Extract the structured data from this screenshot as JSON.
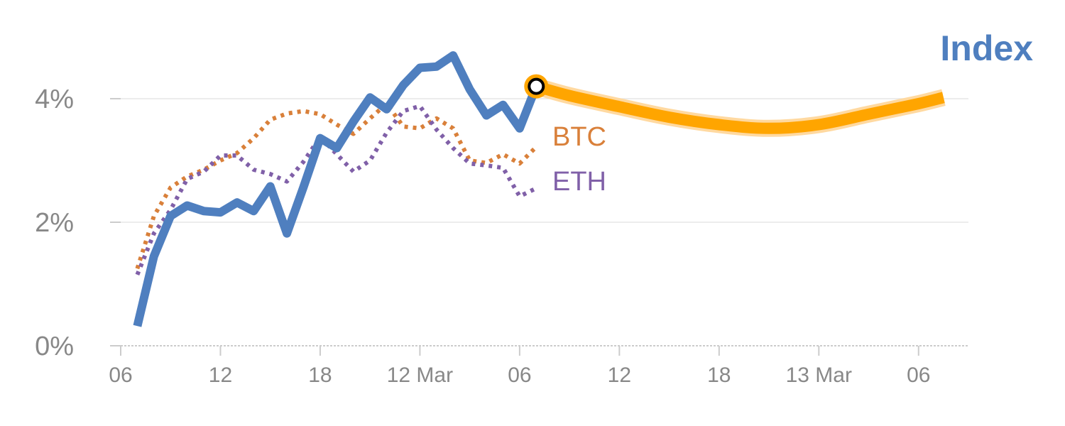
{
  "chart_data": {
    "type": "line",
    "title": "Index",
    "colors": {
      "index": "#4f7fbf",
      "btc": "#d9803a",
      "eth": "#8060a8",
      "forecast": "#ffa500",
      "forecast_glow": "#ffd9a0",
      "grid": "#e6e6e6",
      "axis": "#cccccc",
      "tick_text": "#888888"
    },
    "y_ticks": [
      {
        "value": 0,
        "label": "0%"
      },
      {
        "value": 2,
        "label": "2%"
      },
      {
        "value": 4,
        "label": "4%"
      }
    ],
    "ylim": [
      0,
      5.0
    ],
    "x_ticks": [
      {
        "x": 0,
        "label": "06"
      },
      {
        "x": 6,
        "label": "12"
      },
      {
        "x": 12,
        "label": "18"
      },
      {
        "x": 18,
        "label": "12 Mar"
      },
      {
        "x": 24,
        "label": "06"
      },
      {
        "x": 30,
        "label": "12"
      },
      {
        "x": 36,
        "label": "18"
      },
      {
        "x": 42,
        "label": "13 Mar"
      },
      {
        "x": 48,
        "label": "06"
      }
    ],
    "xlim": [
      0,
      51
    ],
    "series": [
      {
        "name": "Index",
        "key": "index",
        "style": "solid",
        "x": [
          1,
          2,
          3,
          4,
          5,
          6,
          7,
          8,
          9,
          10,
          11,
          12,
          13,
          14,
          15,
          16,
          17,
          18,
          19,
          20,
          21,
          22,
          23,
          24,
          25
        ],
        "y": [
          0.32,
          1.45,
          2.1,
          2.27,
          2.18,
          2.16,
          2.32,
          2.18,
          2.58,
          1.82,
          2.57,
          3.36,
          3.2,
          3.63,
          4.02,
          3.83,
          4.22,
          4.5,
          4.52,
          4.7,
          4.15,
          3.73,
          3.9,
          3.52,
          4.2
        ]
      },
      {
        "name": "BTC",
        "key": "btc",
        "style": "dotted",
        "x": [
          1,
          2,
          3,
          4,
          5,
          6,
          7,
          8,
          9,
          10,
          11,
          12,
          13,
          14,
          15,
          16,
          17,
          18,
          19,
          20,
          21,
          22,
          23,
          24,
          25
        ],
        "y": [
          1.25,
          2.1,
          2.56,
          2.74,
          2.85,
          3.0,
          3.12,
          3.36,
          3.66,
          3.76,
          3.8,
          3.75,
          3.58,
          3.43,
          3.68,
          3.92,
          3.55,
          3.52,
          3.68,
          3.52,
          3.0,
          2.96,
          3.1,
          2.95,
          3.22
        ]
      },
      {
        "name": "ETH",
        "key": "eth",
        "style": "dotted",
        "x": [
          1,
          2,
          3,
          4,
          5,
          6,
          7,
          8,
          9,
          10,
          11,
          12,
          13,
          14,
          15,
          16,
          17,
          18,
          19,
          20,
          21,
          22,
          23,
          24,
          25
        ],
        "y": [
          1.15,
          1.82,
          2.2,
          2.7,
          2.82,
          3.08,
          3.08,
          2.85,
          2.78,
          2.66,
          2.98,
          3.38,
          3.1,
          2.82,
          3.0,
          3.45,
          3.8,
          3.88,
          3.5,
          3.2,
          2.95,
          2.92,
          2.88,
          2.42,
          2.55
        ]
      }
    ],
    "forecast": {
      "x": [
        25,
        27,
        30,
        33,
        36,
        39,
        42,
        45,
        48,
        49.5
      ],
      "y": [
        4.2,
        4.05,
        3.87,
        3.7,
        3.58,
        3.52,
        3.58,
        3.75,
        3.92,
        4.02
      ]
    },
    "marker": {
      "x": 25,
      "y": 4.2
    },
    "labels": {
      "btc": "BTC",
      "eth": "ETH"
    }
  }
}
